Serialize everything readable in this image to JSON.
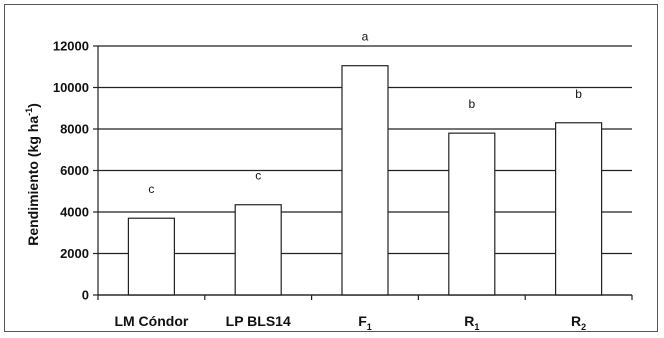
{
  "chart_data": {
    "type": "bar",
    "categories": [
      {
        "main": "LM Cóndor",
        "sub": ""
      },
      {
        "main": "LP BLS14",
        "sub": ""
      },
      {
        "main": "F",
        "sub": "1"
      },
      {
        "main": "R",
        "sub": "1"
      },
      {
        "main": "R",
        "sub": "2"
      }
    ],
    "values": [
      3700,
      4350,
      11050,
      7800,
      8300
    ],
    "annotations": [
      "c",
      "c",
      "a",
      "b",
      "b"
    ],
    "ylabel": {
      "main": "Rendimiento (kg ha",
      "sup": "-1",
      "end": ")"
    },
    "ylim": [
      0,
      12000
    ],
    "yticks": [
      0,
      2000,
      4000,
      6000,
      8000,
      10000,
      12000
    ],
    "grid": true,
    "bar_fill": "#ffffff",
    "bar_stroke": "#222222"
  }
}
